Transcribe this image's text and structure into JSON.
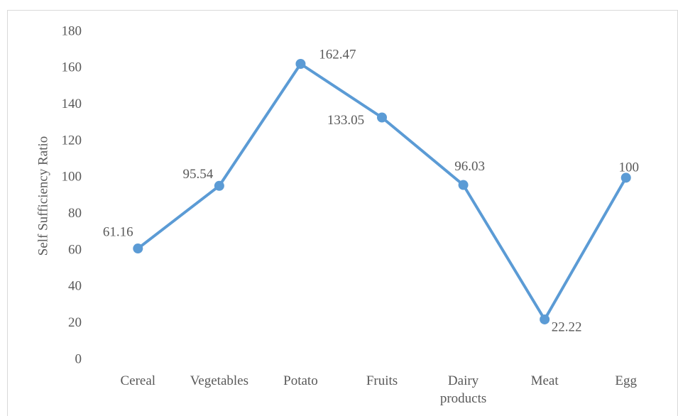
{
  "chart_data": {
    "type": "line",
    "y_label": "Self Sufficiency Ratio",
    "categories": [
      "Cereal",
      "Vegetables",
      "Potato",
      "Fruits",
      "Dairy products",
      "Meat",
      "Egg"
    ],
    "series": [
      {
        "name": "Self Sufficiency Ratio",
        "color": "#5b9bd5",
        "values": [
          61.16,
          95.54,
          162.47,
          133.05,
          96.03,
          22.22,
          100
        ]
      }
    ],
    "ylim": [
      0,
      180
    ],
    "yticks": [
      0,
      20,
      40,
      60,
      80,
      100,
      120,
      140,
      160,
      180
    ],
    "grid": false
  }
}
